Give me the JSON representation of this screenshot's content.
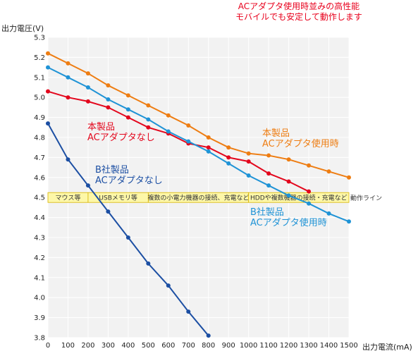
{
  "header": {
    "line1": "ACアダプタ使用時並みの高性能",
    "line2": "モバイルでも安定して動作します",
    "color": "#e8001c"
  },
  "chart_data": {
    "type": "line",
    "ylabel": "出力電圧(V)",
    "xlabel": "出力電流(mA)",
    "xlim": [
      0,
      1500
    ],
    "ylim": [
      3.8,
      5.3
    ],
    "x_ticks": [
      0,
      100,
      200,
      300,
      400,
      500,
      600,
      700,
      800,
      900,
      1000,
      1100,
      1200,
      1300,
      1400,
      1500
    ],
    "y_ticks": [
      3.8,
      3.9,
      4.0,
      4.1,
      4.2,
      4.3,
      4.4,
      4.5,
      4.6,
      4.7,
      4.8,
      4.9,
      5.0,
      5.1,
      5.2,
      5.3
    ],
    "grid": true,
    "series": [
      {
        "name_lines": [
          "本製品",
          "ACアダプタ使用時"
        ],
        "color": "#ee7d12",
        "x": [
          0,
          100,
          200,
          300,
          400,
          500,
          600,
          700,
          800,
          900,
          1000,
          1100,
          1200,
          1300,
          1400,
          1500
        ],
        "y": [
          5.22,
          5.17,
          5.12,
          5.06,
          5.01,
          4.96,
          4.91,
          4.86,
          4.8,
          4.75,
          4.72,
          4.71,
          4.69,
          4.66,
          4.63,
          4.6
        ]
      },
      {
        "name_lines": [
          "本製品",
          "ACアダプタなし"
        ],
        "color": "#e3071d",
        "x": [
          0,
          100,
          200,
          300,
          400,
          500,
          600,
          700,
          800,
          900,
          1000,
          1100,
          1200,
          1300
        ],
        "y": [
          5.03,
          5.0,
          4.98,
          4.95,
          4.9,
          4.85,
          4.82,
          4.77,
          4.75,
          4.7,
          4.68,
          4.62,
          4.58,
          4.53
        ]
      },
      {
        "name_lines": [
          "B社製品",
          "ACアダプタ使用時"
        ],
        "color": "#1f93d6",
        "x": [
          0,
          100,
          200,
          300,
          400,
          500,
          600,
          700,
          800,
          900,
          1000,
          1100,
          1200,
          1300,
          1400,
          1500
        ],
        "y": [
          5.15,
          5.1,
          5.05,
          4.99,
          4.94,
          4.89,
          4.83,
          4.78,
          4.73,
          4.67,
          4.61,
          4.56,
          4.51,
          4.47,
          4.42,
          4.38
        ]
      },
      {
        "name_lines": [
          "B社製品",
          "ACアダプタなし"
        ],
        "color": "#1c4fa3",
        "x": [
          0,
          100,
          200,
          300,
          400,
          500,
          600,
          700,
          800
        ],
        "y": [
          4.87,
          4.69,
          4.56,
          4.43,
          4.3,
          4.17,
          4.06,
          3.93,
          3.81
        ]
      }
    ],
    "annotations": {
      "operating_line": {
        "y": 4.5,
        "label": "動作ライン"
      },
      "zones": [
        {
          "label": "マウス等",
          "from": 0,
          "to": 200
        },
        {
          "label": "USBメモリ等",
          "from": 200,
          "to": 500
        },
        {
          "label": "複数の小電力機器の接続、充電など",
          "from": 500,
          "to": 1000
        },
        {
          "label": "HDDや複数機器の接続・充電など",
          "from": 1000,
          "to": 1500
        }
      ],
      "zone_color": "#fdf7a8",
      "zone_border": "#d8b400"
    }
  }
}
